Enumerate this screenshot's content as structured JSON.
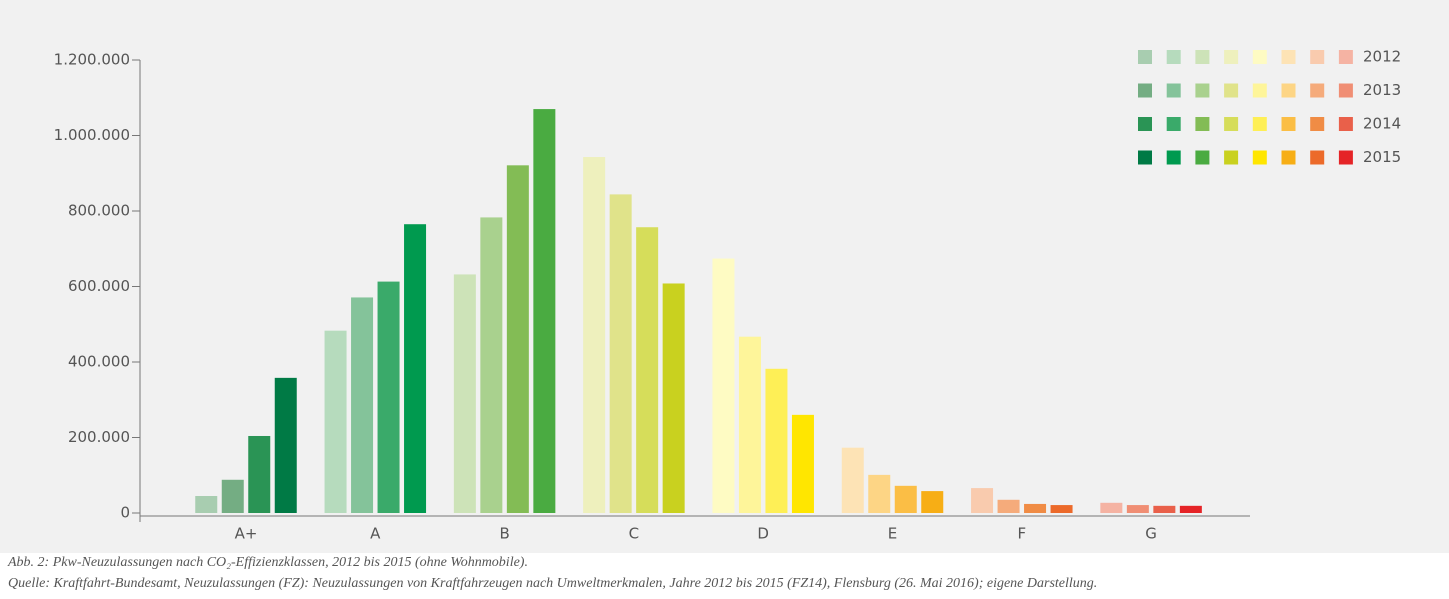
{
  "chart_data": {
    "type": "bar",
    "categories": [
      "A+",
      "A",
      "B",
      "C",
      "D",
      "E",
      "F",
      "G"
    ],
    "series": [
      {
        "name": "2012",
        "colors": [
          "#a8cdb0",
          "#b6dbbd",
          "#cde3b8",
          "#eef0bd",
          "#fefbc3",
          "#fde3b5",
          "#f9cbae",
          "#f5b3a3"
        ],
        "values": [
          45000,
          483000,
          632000,
          943000,
          674000,
          173000,
          66000,
          27000
        ]
      },
      {
        "name": "2013",
        "colors": [
          "#74ad83",
          "#84c39a",
          "#a9d18e",
          "#e0e38a",
          "#fef59a",
          "#fdd585",
          "#f5ab7b",
          "#f08e74"
        ],
        "values": [
          88000,
          571000,
          783000,
          844000,
          467000,
          101000,
          35000,
          21000
        ]
      },
      {
        "name": "2014",
        "colors": [
          "#2a9455",
          "#3aaa6a",
          "#83bc55",
          "#d6dd5a",
          "#feef56",
          "#fbbe45",
          "#f08c45",
          "#e9604a"
        ],
        "values": [
          204000,
          613000,
          921000,
          757000,
          382000,
          72000,
          24000,
          19000
        ]
      },
      {
        "name": "2015",
        "colors": [
          "#007a45",
          "#009a4f",
          "#4aab41",
          "#c9d11f",
          "#ffe600",
          "#f7ae15",
          "#ec6a2a",
          "#e52427"
        ],
        "values": [
          358000,
          765000,
          1070000,
          608000,
          260000,
          58000,
          21000,
          19000
        ]
      }
    ],
    "ylim": [
      0,
      1200000
    ],
    "yticks": [
      0,
      {
        "value": 200000,
        "label": "200.000"
      },
      {
        "value": 400000,
        "label": "400.000"
      },
      {
        "value": 600000,
        "label": "600.000"
      },
      {
        "value": 800000,
        "label": "800.000"
      },
      {
        "value": 1000000,
        "label": "1.000.000"
      },
      {
        "value": 1200000,
        "label": "1.200.000"
      }
    ],
    "legend": "top-right",
    "caption": "Abb. 2: Pkw-Neuzulassungen nach CO₂-Effizienzklassen, 2012 bis 2015 (ohne Wohnmobile).",
    "source": "Quelle: Kraftfahrt-Bundesamt, Neuzulassungen (FZ): Neuzulassungen von Kraftfahrzeugen nach Umweltmerkmalen, Jahre 2012 bis 2015 (FZ14), Flensburg (26. Mai 2016); eigene Darstellung."
  }
}
